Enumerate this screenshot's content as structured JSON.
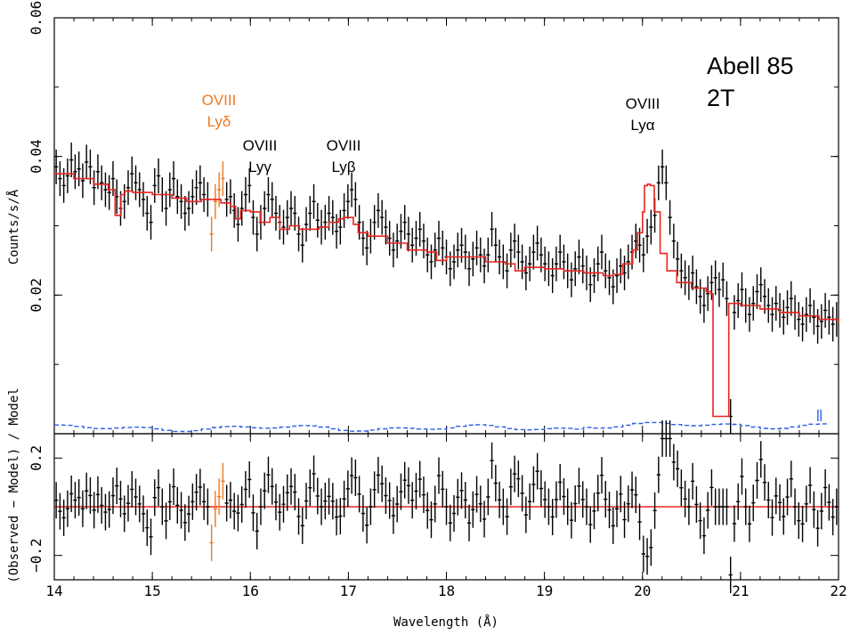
{
  "chart_data": {
    "type": "line",
    "xlabel": "Wavelength (Å)",
    "xlim": [
      14,
      22
    ],
    "x_ticks": [
      14,
      15,
      16,
      17,
      18,
      19,
      20,
      21,
      22
    ],
    "top_panel": {
      "ylabel": "Counts/s/Å",
      "ylim": [
        0,
        0.06
      ],
      "y_ticks": [
        "0.02",
        "0.04",
        "0.06"
      ],
      "y_tick_values": [
        0.02,
        0.04,
        0.06
      ],
      "model_series": {
        "name": "Model (red)",
        "color": "#e8251f",
        "x": [
          14.0,
          14.2,
          14.4,
          14.55,
          14.62,
          14.68,
          14.72,
          14.8,
          15.0,
          15.2,
          15.35,
          15.5,
          15.62,
          15.7,
          15.8,
          15.85,
          15.9,
          16.0,
          16.1,
          16.2,
          16.3,
          16.4,
          16.5,
          16.6,
          16.7,
          16.8,
          16.9,
          16.95,
          17.05,
          17.1,
          17.2,
          17.4,
          17.6,
          17.8,
          17.9,
          18.0,
          18.2,
          18.4,
          18.6,
          18.7,
          18.8,
          19.0,
          19.2,
          19.4,
          19.6,
          19.7,
          19.8,
          19.9,
          19.95,
          20.0,
          20.02,
          20.05,
          20.08,
          20.12,
          20.18,
          20.25,
          20.35,
          20.5,
          20.65,
          20.7,
          20.72,
          20.85,
          20.88,
          21.0,
          21.2,
          21.4,
          21.6,
          21.8,
          22.0
        ],
        "y": [
          0.0375,
          0.0368,
          0.036,
          0.0352,
          0.0315,
          0.0345,
          0.035,
          0.0348,
          0.0345,
          0.034,
          0.0335,
          0.0338,
          0.0338,
          0.0333,
          0.0328,
          0.031,
          0.0322,
          0.032,
          0.0305,
          0.0312,
          0.0295,
          0.03,
          0.0295,
          0.0295,
          0.0298,
          0.0305,
          0.031,
          0.0312,
          0.0302,
          0.029,
          0.0285,
          0.0275,
          0.0265,
          0.0262,
          0.025,
          0.0255,
          0.0255,
          0.0248,
          0.0245,
          0.0235,
          0.024,
          0.0238,
          0.0235,
          0.0232,
          0.0228,
          0.023,
          0.0245,
          0.0265,
          0.029,
          0.032,
          0.0358,
          0.036,
          0.0358,
          0.032,
          0.026,
          0.0235,
          0.0218,
          0.021,
          0.0205,
          0.0202,
          0.0025,
          0.0025,
          0.0188,
          0.0185,
          0.018,
          0.0175,
          0.017,
          0.0165,
          0.016
        ]
      },
      "data_series": {
        "name": "Observed (black, with error bars)",
        "color": "#000000",
        "bin_width": 0.04,
        "y": [
          0.0385,
          0.0368,
          0.0358,
          0.0372,
          0.0395,
          0.0378,
          0.0382,
          0.0365,
          0.0392,
          0.0385,
          0.0355,
          0.0378,
          0.0362,
          0.0352,
          0.0348,
          0.0368,
          0.0342,
          0.0325,
          0.0335,
          0.0355,
          0.0375,
          0.0362,
          0.0352,
          0.0338,
          0.0318,
          0.0305,
          0.0358,
          0.0372,
          0.0345,
          0.0325,
          0.0352,
          0.0368,
          0.0342,
          0.0335,
          0.0318,
          0.0325,
          0.0342,
          0.0355,
          0.0362,
          0.0345,
          0.0338,
          0.0288,
          0.0335,
          0.0352,
          0.0368,
          0.0338,
          0.0342,
          0.0322,
          0.0302,
          0.0325,
          0.0345,
          0.0358,
          0.0312,
          0.0288,
          0.0305,
          0.0325,
          0.0345,
          0.0338,
          0.0318,
          0.0305,
          0.0298,
          0.0312,
          0.0325,
          0.0318,
          0.0288,
          0.0272,
          0.0302,
          0.0318,
          0.0335,
          0.0308,
          0.0298,
          0.0305,
          0.0318,
          0.0312,
          0.0292,
          0.0298,
          0.0322,
          0.0335,
          0.0352,
          0.0338,
          0.0305,
          0.0282,
          0.0268,
          0.0285,
          0.0305,
          0.0322,
          0.0312,
          0.0298,
          0.0282,
          0.0265,
          0.0278,
          0.0292,
          0.0305,
          0.0288,
          0.0272,
          0.0282,
          0.0295,
          0.0278,
          0.0258,
          0.0248,
          0.0265,
          0.0282,
          0.0268,
          0.0255,
          0.0238,
          0.0248,
          0.0265,
          0.0272,
          0.0262,
          0.0238,
          0.0252,
          0.0268,
          0.0258,
          0.0242,
          0.0258,
          0.0295,
          0.0272,
          0.0255,
          0.0248,
          0.0235,
          0.0265,
          0.0278,
          0.0262,
          0.0248,
          0.0232,
          0.0245,
          0.0262,
          0.0275,
          0.0258,
          0.0245,
          0.0238,
          0.0228,
          0.0245,
          0.0262,
          0.0248,
          0.0235,
          0.0222,
          0.0238,
          0.0255,
          0.0242,
          0.0232,
          0.0215,
          0.0228,
          0.0245,
          0.0262,
          0.0235,
          0.0225,
          0.0212,
          0.0228,
          0.0242,
          0.0232,
          0.0248,
          0.0262,
          0.0278,
          0.0272,
          0.0258,
          0.0285,
          0.0298,
          0.0315,
          0.0362,
          0.0385,
          0.0362,
          0.0312,
          0.0278,
          0.0252,
          0.0235,
          0.0225,
          0.0218,
          0.0232,
          0.0212,
          0.0198,
          0.0185,
          0.0202,
          0.0218,
          0.0225,
          0.0208,
          0.0222,
          0.0195,
          0.0025,
          0.0175,
          0.0192,
          0.0208,
          0.0185,
          0.0172,
          0.0188,
          0.0205,
          0.0215,
          0.0198,
          0.0185,
          0.0172,
          0.0188,
          0.0178,
          0.0168,
          0.0182,
          0.0195,
          0.0175,
          0.0165,
          0.0158,
          0.0172,
          0.0185,
          0.0168,
          0.0155,
          0.0162,
          0.0178,
          0.0168,
          0.0158,
          0.0165
        ],
        "error": 0.0025
      },
      "background_series": {
        "name": "Background (blue dashed)",
        "color": "#2b5ce6",
        "approx_level": 0.0008
      },
      "annotations": [
        {
          "label": "OVIII",
          "sub": "Lyδ",
          "x": 15.65,
          "color": "#f07820"
        },
        {
          "label": "OVIII",
          "sub": "Lyγ",
          "x": 16.0,
          "color": "#000000"
        },
        {
          "label": "OVIII",
          "sub": "Lyβ",
          "x": 16.95,
          "color": "#000000"
        },
        {
          "label": "OVIII",
          "sub": "Lyα",
          "x": 20.05,
          "color": "#000000"
        }
      ],
      "title_lines": [
        "Abell 85",
        "2T"
      ]
    },
    "bottom_panel": {
      "ylabel": "(Observed − Model) / Model",
      "ylim": [
        -0.3,
        0.3
      ],
      "y_ticks": [
        "0.2",
        "0",
        "−0.2"
      ],
      "y_tick_values": [
        0.2,
        0,
        -0.2
      ],
      "zero_line_color": "#e8251f"
    },
    "highlight_color": "#f07820"
  }
}
